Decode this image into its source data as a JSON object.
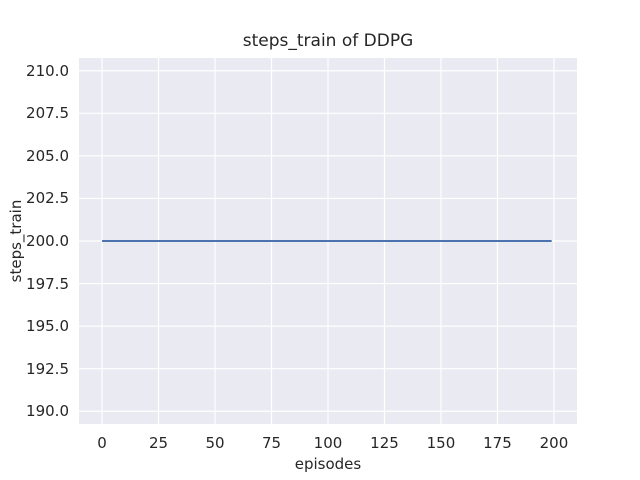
{
  "chart_data": {
    "type": "line",
    "title": "steps_train of DDPG",
    "xlabel": "episodes",
    "ylabel": "steps_train",
    "series": [
      {
        "name": "steps_train",
        "color": "#4C72B0",
        "line_width": 2,
        "x": [
          0,
          199
        ],
        "y": [
          200,
          200
        ],
        "note": "constant horizontal line at steps_train = 200 for all episodes"
      }
    ],
    "x_ticks": {
      "values": [
        0,
        25,
        50,
        75,
        100,
        125,
        150,
        175,
        200
      ],
      "labels": [
        "0",
        "25",
        "50",
        "75",
        "100",
        "125",
        "150",
        "175",
        "200"
      ]
    },
    "y_ticks": {
      "values": [
        190.0,
        192.5,
        195.0,
        197.5,
        200.0,
        202.5,
        205.0,
        207.5,
        210.0
      ],
      "labels": [
        "190.0",
        "192.5",
        "195.0",
        "197.5",
        "200.0",
        "202.5",
        "205.0",
        "207.5",
        "210.0"
      ]
    },
    "xlim": [
      -10.2,
      210.2
    ],
    "ylim": [
      189.25,
      210.75
    ],
    "grid": true,
    "legend_shown": false,
    "style": {
      "plot_background": "#EAEAF2",
      "grid_color": "#FFFFFF",
      "text_color": "#262626",
      "figure_background": "#FFFFFF"
    }
  }
}
